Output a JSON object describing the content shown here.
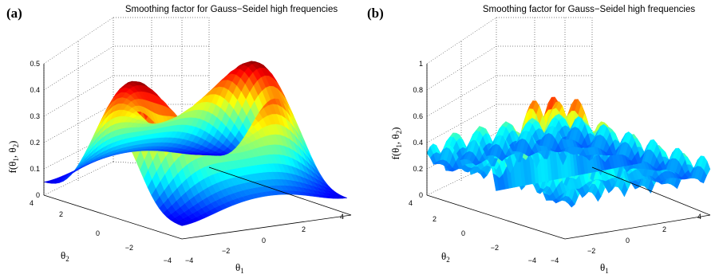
{
  "chart_data": [
    {
      "type": "surface",
      "panel_label": "(a)",
      "title": "Smoothing factor for Gauss−Seidel high frequencies",
      "xlabel": "θ",
      "xlabel_sub": "1",
      "ylabel": "θ",
      "ylabel_sub": "2",
      "zlabel": "f(θ",
      "zlabel_mid": ", θ",
      "zlabel_sub1": "1",
      "zlabel_sub2": "2",
      "zlabel_close": ")",
      "xlim": [
        -4,
        4
      ],
      "ylim": [
        -4,
        4
      ],
      "zlim": [
        0,
        0.5
      ],
      "x_ticks": [
        "−4",
        "−2",
        "0",
        "2",
        "4"
      ],
      "y_ticks": [
        "4",
        "2",
        "0",
        "−2",
        "−4"
      ],
      "z_ticks": [
        "0",
        "0.1",
        "0.2",
        "0.3",
        "0.4",
        "0.5"
      ],
      "colormap": "jet",
      "grid": true
    },
    {
      "type": "surface",
      "panel_label": "(b)",
      "title": "Smoothing factor for Gauss−Seidel high frequencies",
      "xlabel": "θ",
      "xlabel_sub": "1",
      "ylabel": "θ",
      "ylabel_sub": "2",
      "zlabel": "f(θ",
      "zlabel_mid": ", θ",
      "zlabel_sub1": "1",
      "zlabel_sub2": "2",
      "zlabel_close": ")",
      "xlim": [
        -4,
        4
      ],
      "ylim": [
        -4,
        4
      ],
      "zlim": [
        0,
        1
      ],
      "x_ticks": [
        "−4",
        "−2",
        "0",
        "2",
        "4"
      ],
      "y_ticks": [
        "4",
        "2",
        "0",
        "−2",
        "−4"
      ],
      "z_ticks": [
        "0",
        "0.2",
        "0.4",
        "0.6",
        "0.8",
        "1"
      ],
      "colormap": "jet",
      "grid": true
    }
  ]
}
